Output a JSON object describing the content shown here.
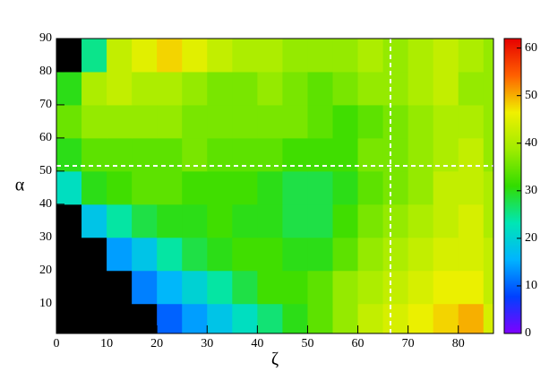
{
  "chart_data": {
    "type": "heatmap",
    "x_label": "ζ",
    "y_label": "α",
    "xbins": [
      0,
      5,
      10,
      15,
      20,
      25,
      30,
      35,
      40,
      45,
      50,
      55,
      60,
      65,
      70,
      75,
      80,
      85,
      87
    ],
    "ybins": [
      1,
      10,
      20,
      30,
      40,
      50,
      60,
      70,
      80,
      90
    ],
    "z": [
      [
        null,
        null,
        null,
        null,
        10,
        14,
        18,
        22,
        26,
        30,
        34,
        38,
        42,
        44,
        46,
        48,
        50,
        44
      ],
      [
        null,
        null,
        null,
        12,
        16,
        20,
        24,
        28,
        32,
        32,
        34,
        38,
        40,
        42,
        44,
        46,
        46,
        42
      ],
      [
        null,
        null,
        14,
        18,
        24,
        28,
        30,
        32,
        32,
        30,
        30,
        34,
        38,
        40,
        42,
        44,
        44,
        42
      ],
      [
        null,
        18,
        24,
        28,
        30,
        30,
        32,
        30,
        30,
        28,
        28,
        32,
        36,
        38,
        40,
        42,
        44,
        40
      ],
      [
        22,
        30,
        32,
        34,
        34,
        32,
        32,
        32,
        30,
        28,
        28,
        30,
        34,
        36,
        38,
        42,
        42,
        40
      ],
      [
        30,
        34,
        34,
        34,
        34,
        36,
        34,
        34,
        34,
        32,
        32,
        32,
        36,
        36,
        38,
        40,
        42,
        38
      ],
      [
        35,
        38,
        38,
        38,
        38,
        36,
        36,
        36,
        36,
        36,
        34,
        32,
        34,
        36,
        38,
        40,
        40,
        38
      ],
      [
        30,
        40,
        42,
        40,
        40,
        38,
        36,
        36,
        38,
        36,
        34,
        36,
        38,
        38,
        40,
        42,
        38,
        38
      ],
      [
        null,
        25,
        42,
        45,
        48,
        45,
        42,
        40,
        40,
        38,
        38,
        38,
        40,
        38,
        40,
        42,
        40,
        38
      ]
    ],
    "xlim": [
      0,
      87
    ],
    "ylim": [
      1,
      90
    ],
    "zlim": [
      0,
      62
    ],
    "xticks": [
      0,
      10,
      20,
      30,
      40,
      50,
      60,
      70,
      80
    ],
    "yticks": [
      10,
      20,
      30,
      40,
      50,
      60,
      70,
      80,
      90
    ],
    "zticks": [
      0,
      10,
      20,
      30,
      40,
      50,
      60
    ],
    "colorscale": [
      "#7f00ff",
      "#0040ff",
      "#00b4ff",
      "#00e6b4",
      "#32dc00",
      "#a0ec00",
      "#f0f000",
      "#ff6000",
      "#e60000"
    ],
    "null_color": "#000000"
  }
}
